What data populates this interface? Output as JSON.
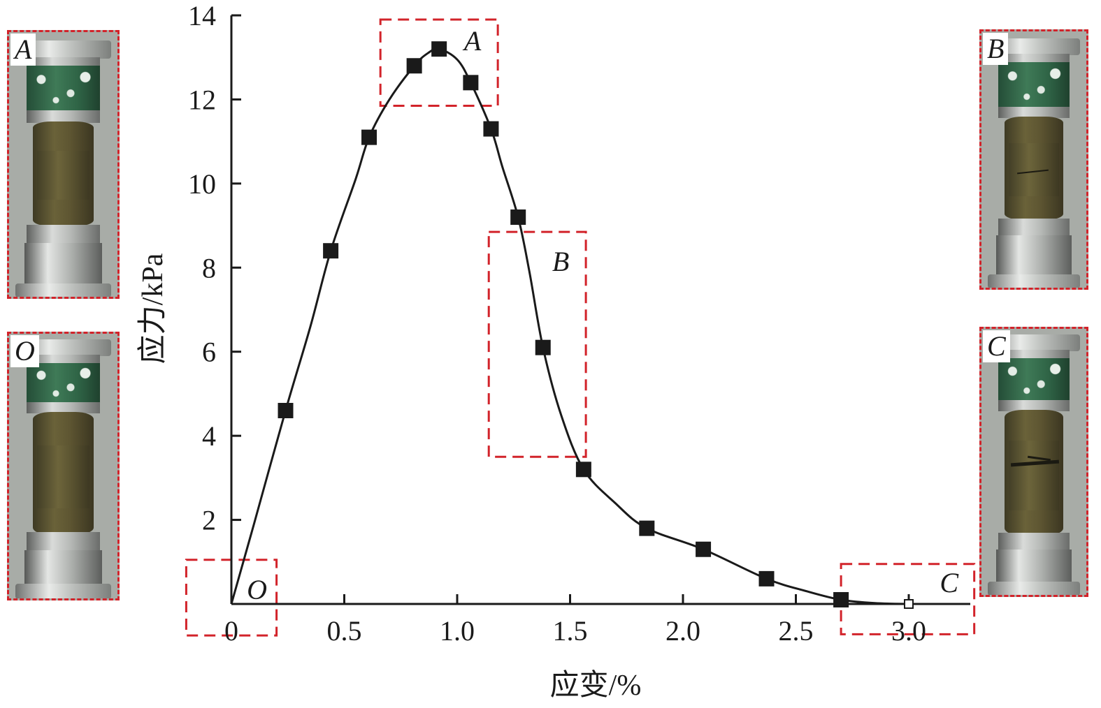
{
  "chart_data": {
    "type": "line",
    "xlabel": "应变/%",
    "ylabel": "应力/kPa",
    "xlim": [
      0,
      3.2
    ],
    "ylim": [
      0,
      14
    ],
    "x_ticks": [
      0,
      0.5,
      1.0,
      1.5,
      2.0,
      2.5,
      3.0
    ],
    "x_tick_labels": [
      "0",
      "0.5",
      "1.0",
      "1.5",
      "2.0",
      "2.5",
      "3.0"
    ],
    "y_ticks": [
      2,
      4,
      6,
      8,
      10,
      12,
      14
    ],
    "y_tick_labels": [
      "2",
      "4",
      "6",
      "8",
      "10",
      "12",
      "14"
    ],
    "grid": false,
    "series": [
      {
        "marker": "square",
        "x": [
          0.24,
          0.44,
          0.61,
          0.81,
          0.92,
          1.06,
          1.15,
          1.27,
          1.38,
          1.56,
          1.84,
          2.09,
          2.37,
          2.7
        ],
        "y": [
          4.6,
          8.4,
          11.1,
          12.8,
          13.2,
          12.4,
          11.3,
          9.2,
          6.1,
          3.2,
          1.8,
          1.3,
          0.6,
          0.1
        ]
      }
    ],
    "curve": {
      "x": [
        0,
        0.1,
        0.24,
        0.35,
        0.44,
        0.55,
        0.61,
        0.7,
        0.81,
        0.87,
        0.92,
        1.0,
        1.06,
        1.15,
        1.2,
        1.27,
        1.32,
        1.38,
        1.46,
        1.56,
        1.7,
        1.84,
        2.09,
        2.37,
        2.55,
        2.7,
        2.85,
        3.0
      ],
      "y": [
        0,
        1.9,
        4.6,
        6.6,
        8.4,
        10.1,
        11.1,
        12.0,
        12.8,
        13.1,
        13.2,
        12.95,
        12.4,
        11.3,
        10.4,
        9.2,
        7.9,
        6.1,
        4.5,
        3.2,
        2.4,
        1.8,
        1.3,
        0.6,
        0.3,
        0.1,
        0.02,
        0.0
      ]
    },
    "end_marker": {
      "x": 3.0,
      "y": 0.0,
      "marker": "open-square"
    },
    "regions": [
      {
        "label": "O",
        "x": [
          -0.2,
          0.2
        ],
        "y": [
          -0.75,
          1.05
        ]
      },
      {
        "label": "A",
        "x": [
          0.66,
          1.18
        ],
        "y": [
          11.85,
          13.9
        ]
      },
      {
        "label": "B",
        "x": [
          1.14,
          1.57
        ],
        "y": [
          3.5,
          8.85
        ]
      },
      {
        "label": "C",
        "x": [
          2.7,
          3.29
        ],
        "y": [
          -0.72,
          0.95
        ]
      }
    ],
    "colors": {
      "line": "#1a1a1a",
      "marker": "#1a1a1a",
      "region_box": "#d2232a"
    }
  },
  "photos": [
    {
      "label": "A",
      "crack": false
    },
    {
      "label": "O",
      "crack": false
    },
    {
      "label": "B",
      "crack": "fine"
    },
    {
      "label": "C",
      "crack": "wide"
    }
  ]
}
